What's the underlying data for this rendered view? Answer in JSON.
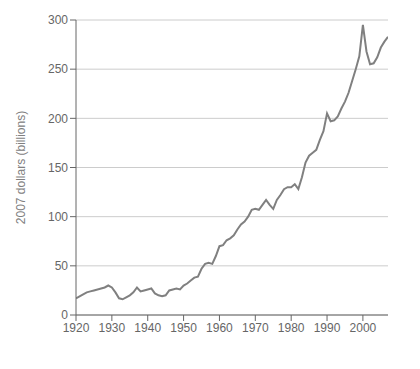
{
  "chart_data": {
    "type": "line",
    "ylabel": "2007 dollars (billions)",
    "color": "#808080",
    "grid": "y",
    "xlim": [
      1920,
      2007
    ],
    "ylim": [
      0,
      300
    ],
    "xticks": [
      1920,
      1930,
      1940,
      1950,
      1960,
      1970,
      1980,
      1990,
      2000
    ],
    "yticks": [
      0,
      50,
      100,
      150,
      200,
      250,
      300
    ],
    "x": [
      1920,
      1921,
      1922,
      1923,
      1924,
      1925,
      1926,
      1927,
      1928,
      1929,
      1930,
      1931,
      1932,
      1933,
      1934,
      1935,
      1936,
      1937,
      1938,
      1939,
      1940,
      1941,
      1942,
      1943,
      1944,
      1945,
      1946,
      1947,
      1948,
      1949,
      1950,
      1951,
      1952,
      1953,
      1954,
      1955,
      1956,
      1957,
      1958,
      1959,
      1960,
      1961,
      1962,
      1963,
      1964,
      1965,
      1966,
      1967,
      1968,
      1969,
      1970,
      1971,
      1972,
      1973,
      1974,
      1975,
      1976,
      1977,
      1978,
      1979,
      1980,
      1981,
      1982,
      1983,
      1984,
      1985,
      1986,
      1987,
      1988,
      1989,
      1990,
      1991,
      1992,
      1993,
      1994,
      1995,
      1996,
      1997,
      1998,
      1999,
      2000,
      2001,
      2002,
      2003,
      2004,
      2005,
      2006,
      2007
    ],
    "values": [
      17,
      19,
      21,
      23,
      24,
      25,
      26,
      27,
      28,
      30,
      28,
      23,
      17,
      16,
      18,
      20,
      23,
      28,
      24,
      25,
      26,
      27,
      22,
      20,
      19,
      20,
      25,
      26,
      27,
      26,
      30,
      32,
      35,
      38,
      39,
      47,
      52,
      53,
      52,
      60,
      70,
      71,
      76,
      78,
      81,
      87,
      92,
      95,
      100,
      107,
      108,
      107,
      112,
      117,
      112,
      108,
      117,
      122,
      128,
      130,
      130,
      133,
      128,
      140,
      155,
      162,
      165,
      168,
      178,
      187,
      205,
      197,
      198,
      202,
      210,
      217,
      226,
      238,
      250,
      263,
      295,
      268,
      255,
      256,
      262,
      272,
      278,
      283
    ]
  }
}
